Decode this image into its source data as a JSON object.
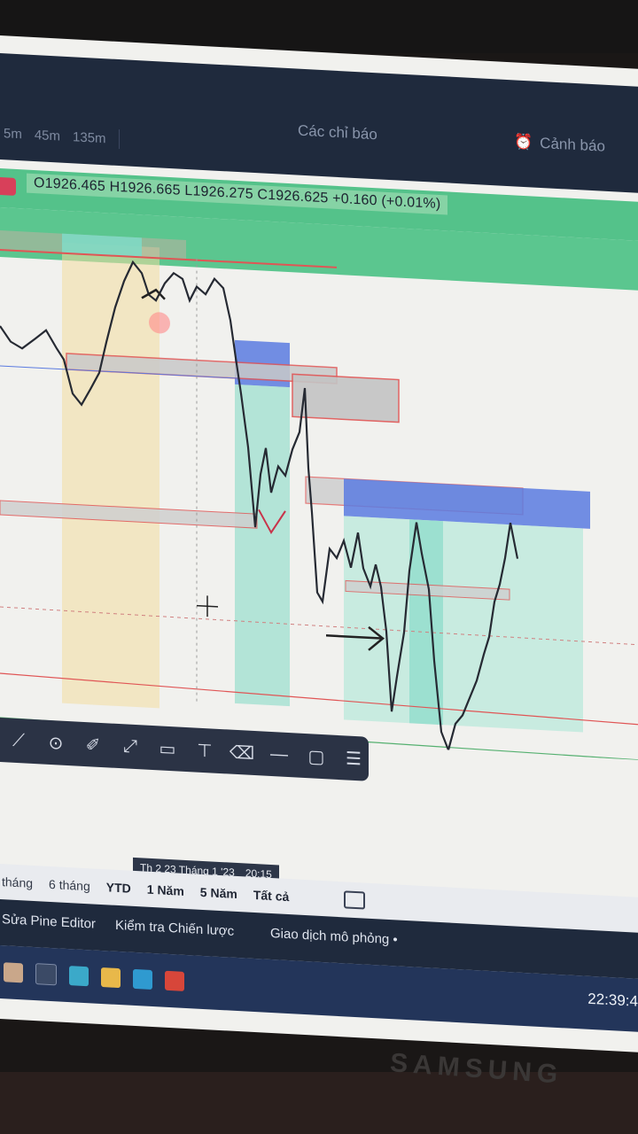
{
  "timeframes": [
    "5m",
    "45m",
    "135m"
  ],
  "toolbar_top": {
    "indicators_label": "Các chỉ báo",
    "alert_label": "Cảnh báo"
  },
  "ohlc": {
    "text": "O1926.465  H1926.665  L1926.275  C1926.625  +0.160 (+0.01%)"
  },
  "drawing_tools": [
    {
      "name": "cursor-tool-icon",
      "glyph": "⟋"
    },
    {
      "name": "target-tool-icon",
      "glyph": "⊙"
    },
    {
      "name": "brush-tool-icon",
      "glyph": "✐"
    },
    {
      "name": "trendline-tool-icon",
      "glyph": "⤢"
    },
    {
      "name": "callout-tool-icon",
      "glyph": "▭"
    },
    {
      "name": "pin-callout-tool-icon",
      "glyph": "⊤"
    },
    {
      "name": "eraser-tool-icon",
      "glyph": "⌫"
    },
    {
      "name": "hline-tool-icon",
      "glyph": "—"
    },
    {
      "name": "comment-tool-icon",
      "glyph": "▢"
    },
    {
      "name": "settings-sliders-icon",
      "glyph": "☰"
    }
  ],
  "time_label": {
    "date": "Th 2 23 Tháng 1 '23",
    "time": "20:15"
  },
  "range_bar": {
    "items": [
      "tháng",
      "6 tháng",
      "YTD",
      "1 Năm",
      "5 Năm",
      "Tất cả"
    ]
  },
  "bottom_bar": {
    "pine_editor": "Sửa Pine Editor",
    "strategy_tester": "Kiểm tra Chiến lược",
    "paper_trading": "Giao dịch mô phỏng •"
  },
  "taskbar": {
    "clock": "22:39:4"
  },
  "monitor_brand": "SAMSUNG",
  "colors": {
    "topbar_bg": "#1f2a3d",
    "ohlc_bg": "#54c28a",
    "zone_blue": "#5b7be0",
    "zone_teal": "#7fd9c4",
    "zone_grey": "#b8b8b8",
    "zone_red_border": "#e05555",
    "zone_yellow": "#f3dca0"
  }
}
